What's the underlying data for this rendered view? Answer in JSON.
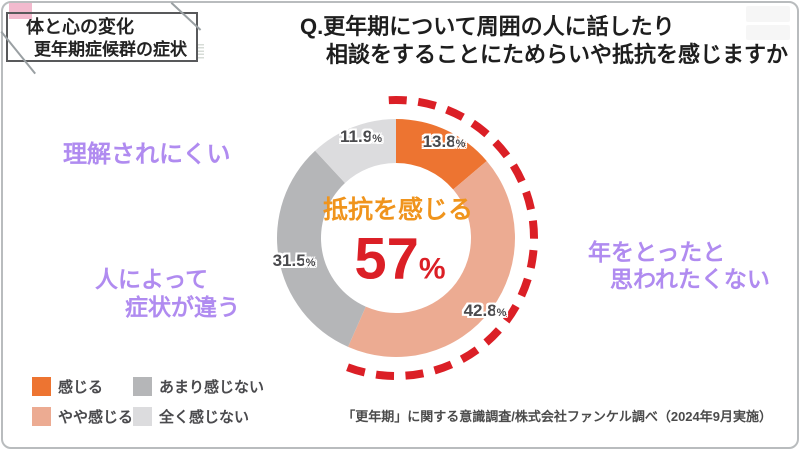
{
  "topic_box": {
    "line1": "体と心の変化",
    "line2": "更年期症候群の症状"
  },
  "question": {
    "line1": "Q.更年期について周囲の人に話したり",
    "line2": "相談をすることにためらいや抵抗を感じますか"
  },
  "annotations": {
    "misunderstood": "理解されにくい",
    "symptoms_line1": "人によって",
    "symptoms_line2": "症状が違う",
    "age_line1": "年をとったと",
    "age_line2": "思われたくない"
  },
  "chart_data": {
    "type": "pie",
    "subtype": "donut",
    "title": "Q.更年期について周囲の人に話したり相談をすることにためらいや抵抗を感じますか",
    "unit": "%",
    "start_angle_deg": 0,
    "direction": "clockwise",
    "segments": [
      {
        "label": "感じる",
        "value": 13.8,
        "color": "#ED7431"
      },
      {
        "label": "やや感じる",
        "value": 42.8,
        "color": "#ECAB92"
      },
      {
        "label": "あまり感じない",
        "value": 31.5,
        "color": "#B5B6B8"
      },
      {
        "label": "全く感じない",
        "value": 11.9,
        "color": "#DCDCDE"
      }
    ],
    "legend_order": [
      "感じる",
      "あまり感じない",
      "やや感じる",
      "全く感じない"
    ],
    "highlight": {
      "label": "抵抗を感じる",
      "value": "57",
      "unit": "%",
      "covers": [
        "感じる",
        "やや感じる"
      ],
      "arc_color": "#DB1F26",
      "arc_start_deg": -3,
      "arc_end_deg": 205,
      "label_color": "#F0941C",
      "value_color": "#DB1F26"
    }
  },
  "source": "「更年期」に関する意識調査/株式会社ファンケル調べ（2024年9月実施）",
  "colors": {
    "purple_annotation": "#B08BF0",
    "pink_accent": "#F2BACE",
    "box_border": "#58595B",
    "percent_label_gray": "#4A4A4D"
  }
}
